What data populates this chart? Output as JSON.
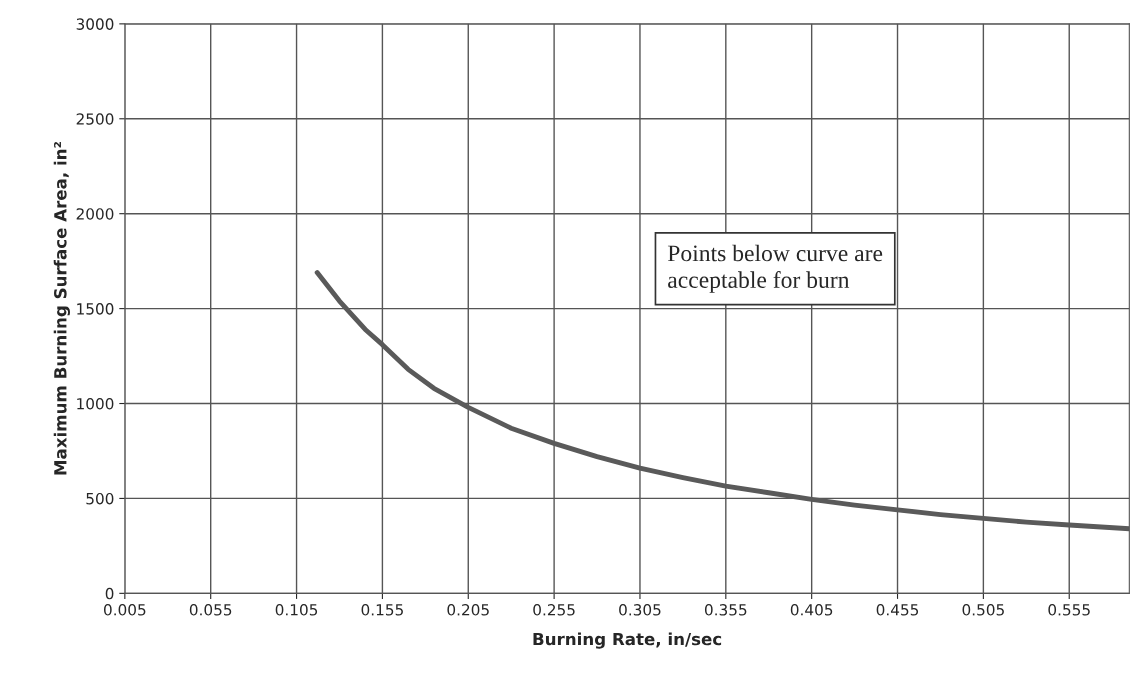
{
  "chart_data": {
    "type": "line",
    "xlabel": "Burning Rate, in/sec",
    "ylabel": "Maximum Burning Surface Area, in²",
    "x": [
      0.117,
      0.13,
      0.145,
      0.155,
      0.17,
      0.185,
      0.205,
      0.23,
      0.255,
      0.28,
      0.305,
      0.33,
      0.355,
      0.38,
      0.405,
      0.43,
      0.455,
      0.48,
      0.505,
      0.53,
      0.555,
      0.59
    ],
    "series": [
      {
        "color": "#5a5a5a",
        "values": [
          1690,
          1540,
          1390,
          1310,
          1180,
          1080,
          980,
          870,
          790,
          720,
          660,
          610,
          565,
          530,
          495,
          465,
          440,
          415,
          395,
          375,
          360,
          340
        ]
      }
    ],
    "xlim": [
      0.005,
      0.59
    ],
    "ylim": [
      0,
      3000
    ],
    "xticks": [
      0.005,
      0.055,
      0.105,
      0.155,
      0.205,
      0.255,
      0.305,
      0.355,
      0.405,
      0.455,
      0.505,
      0.555
    ],
    "yticks": [
      0,
      500,
      1000,
      1500,
      2000,
      2500,
      3000
    ],
    "grid": true,
    "line_style": "solid",
    "marker": "none",
    "annotations": [
      "Points below curve are\nacceptable for burn"
    ]
  }
}
